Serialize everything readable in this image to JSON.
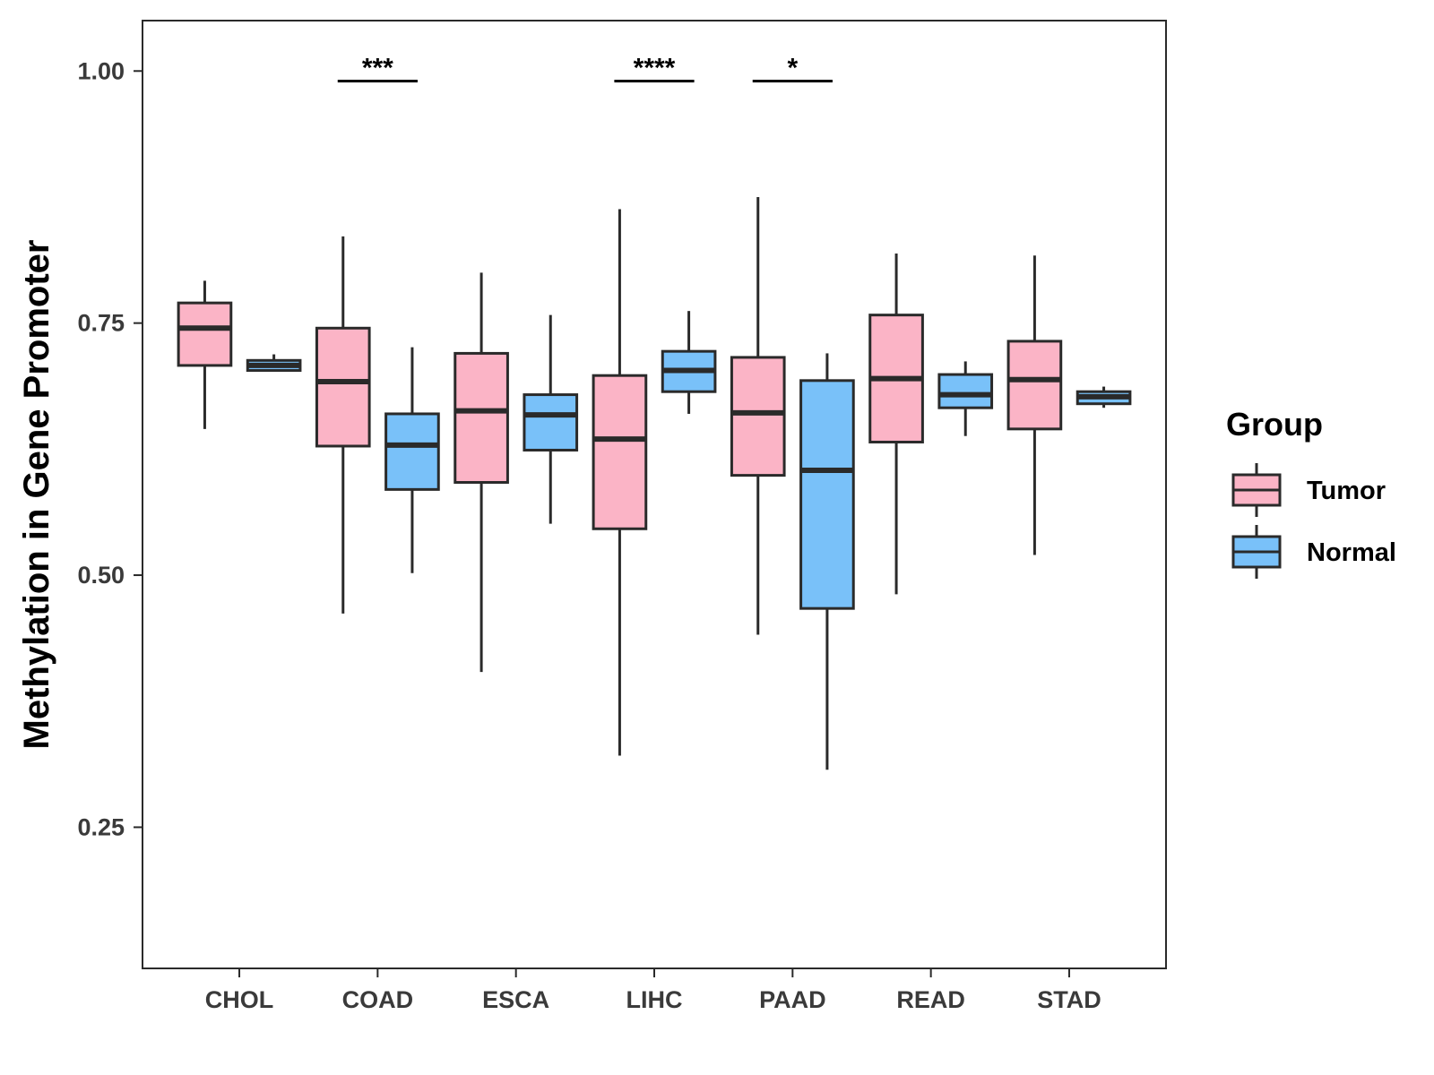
{
  "chart_data": {
    "type": "boxplot",
    "title": "",
    "xlabel": "",
    "ylabel": "Methylation in Gene Promoter",
    "ylim": [
      0.11,
      1.05
    ],
    "yticks": [
      0.25,
      0.5,
      0.75,
      1.0
    ],
    "ytick_labels": [
      "0.25",
      "0.50",
      "0.75",
      "1.00"
    ],
    "categories": [
      "CHOL",
      "COAD",
      "ESCA",
      "LIHC",
      "PAAD",
      "READ",
      "STAD"
    ],
    "legend": {
      "title": "Group",
      "position": "right",
      "entries": [
        {
          "name": "Tumor",
          "color": "#fbb4c6"
        },
        {
          "name": "Normal",
          "color": "#79c1f9"
        }
      ]
    },
    "series": [
      {
        "name": "Tumor",
        "color": "#fbb4c6",
        "boxes": [
          {
            "min": 0.645,
            "q1": 0.708,
            "median": 0.745,
            "q3": 0.77,
            "max": 0.792
          },
          {
            "min": 0.462,
            "q1": 0.628,
            "median": 0.692,
            "q3": 0.745,
            "max": 0.836
          },
          {
            "min": 0.404,
            "q1": 0.592,
            "median": 0.663,
            "q3": 0.72,
            "max": 0.8
          },
          {
            "min": 0.321,
            "q1": 0.546,
            "median": 0.635,
            "q3": 0.698,
            "max": 0.863
          },
          {
            "min": 0.441,
            "q1": 0.599,
            "median": 0.661,
            "q3": 0.716,
            "max": 0.875
          },
          {
            "min": 0.481,
            "q1": 0.632,
            "median": 0.695,
            "q3": 0.758,
            "max": 0.819
          },
          {
            "min": 0.52,
            "q1": 0.645,
            "median": 0.694,
            "q3": 0.732,
            "max": 0.817
          }
        ]
      },
      {
        "name": "Normal",
        "color": "#79c1f9",
        "boxes": [
          {
            "min": 0.703,
            "q1": 0.703,
            "median": 0.708,
            "q3": 0.713,
            "max": 0.719
          },
          {
            "min": 0.502,
            "q1": 0.585,
            "median": 0.629,
            "q3": 0.66,
            "max": 0.726
          },
          {
            "min": 0.551,
            "q1": 0.624,
            "median": 0.659,
            "q3": 0.679,
            "max": 0.758
          },
          {
            "min": 0.66,
            "q1": 0.682,
            "median": 0.703,
            "q3": 0.722,
            "max": 0.762
          },
          {
            "min": 0.307,
            "q1": 0.467,
            "median": 0.604,
            "q3": 0.693,
            "max": 0.72
          },
          {
            "min": 0.638,
            "q1": 0.666,
            "median": 0.679,
            "q3": 0.699,
            "max": 0.712
          },
          {
            "min": 0.666,
            "q1": 0.67,
            "median": 0.677,
            "q3": 0.682,
            "max": 0.687
          }
        ]
      }
    ],
    "annotations": [
      {
        "category": "COAD",
        "label": "***",
        "y": 0.99
      },
      {
        "category": "LIHC",
        "label": "****",
        "y": 0.99
      },
      {
        "category": "PAAD",
        "label": "*",
        "y": 0.99
      }
    ],
    "grid": false
  }
}
